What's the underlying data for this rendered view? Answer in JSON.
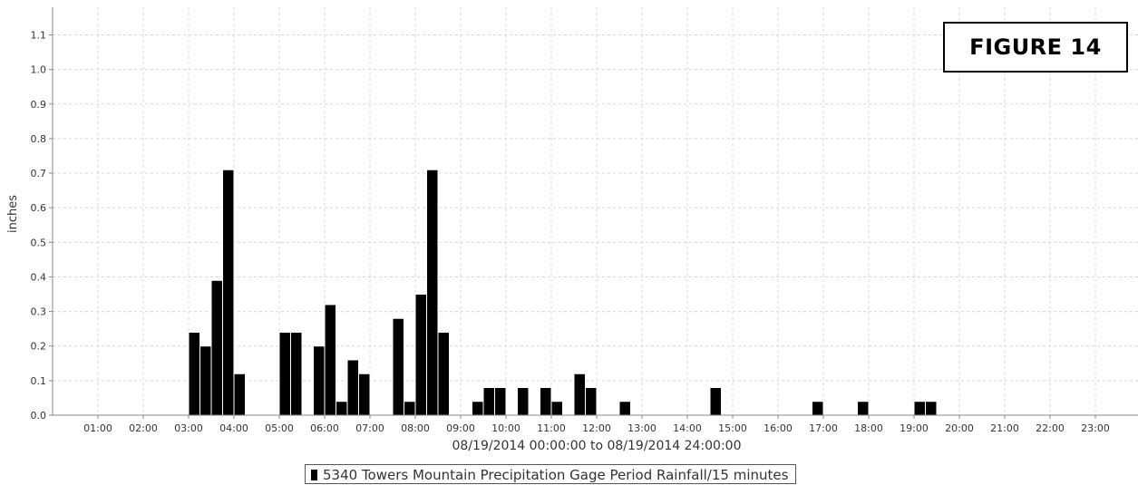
{
  "figure_label": "FIGURE 14",
  "legend_label": "5340 Towers Mountain Precipitation Gage Period Rainfall/15 minutes",
  "colors": {
    "bar": "#000000",
    "grid": "#d8d8d8",
    "axis": "#888888"
  },
  "chart_data": {
    "type": "bar",
    "ylabel": "inches",
    "xlabel": "08/19/2014 00:00:00 to 08/19/2014 24:00:00",
    "ylim": [
      0,
      1.18
    ],
    "xlim_hours": [
      0,
      24
    ],
    "yticks": [
      "0.0",
      "0.1",
      "0.2",
      "0.3",
      "0.4",
      "0.5",
      "0.6",
      "0.7",
      "0.8",
      "0.9",
      "1.0",
      "1.1"
    ],
    "xticks": [
      "01:00",
      "02:00",
      "03:00",
      "04:00",
      "05:00",
      "06:00",
      "07:00",
      "08:00",
      "09:00",
      "10:00",
      "11:00",
      "12:00",
      "13:00",
      "14:00",
      "15:00",
      "16:00",
      "17:00",
      "18:00",
      "19:00",
      "20:00",
      "21:00",
      "22:00",
      "23:00"
    ],
    "grid": true,
    "legend_position": "bottom",
    "interval": "15 minutes",
    "series": [
      {
        "name": "5340 Towers Mountain Precipitation Gage Period Rainfall/15 minutes",
        "points": [
          {
            "t": "03:00",
            "v": 0.24
          },
          {
            "t": "03:15",
            "v": 0.2
          },
          {
            "t": "03:30",
            "v": 0.39
          },
          {
            "t": "03:45",
            "v": 0.71
          },
          {
            "t": "04:00",
            "v": 0.12
          },
          {
            "t": "05:00",
            "v": 0.24
          },
          {
            "t": "05:15",
            "v": 0.24
          },
          {
            "t": "05:45",
            "v": 0.2
          },
          {
            "t": "06:00",
            "v": 0.32
          },
          {
            "t": "06:15",
            "v": 0.04
          },
          {
            "t": "06:30",
            "v": 0.16
          },
          {
            "t": "06:45",
            "v": 0.12
          },
          {
            "t": "07:30",
            "v": 0.28
          },
          {
            "t": "07:45",
            "v": 0.04
          },
          {
            "t": "08:00",
            "v": 0.35
          },
          {
            "t": "08:15",
            "v": 0.71
          },
          {
            "t": "08:30",
            "v": 0.24
          },
          {
            "t": "09:15",
            "v": 0.04
          },
          {
            "t": "09:30",
            "v": 0.08
          },
          {
            "t": "09:45",
            "v": 0.08
          },
          {
            "t": "10:15",
            "v": 0.08
          },
          {
            "t": "10:45",
            "v": 0.08
          },
          {
            "t": "11:00",
            "v": 0.04
          },
          {
            "t": "11:30",
            "v": 0.12
          },
          {
            "t": "11:45",
            "v": 0.08
          },
          {
            "t": "12:30",
            "v": 0.04
          },
          {
            "t": "14:30",
            "v": 0.08
          },
          {
            "t": "16:45",
            "v": 0.04
          },
          {
            "t": "17:45",
            "v": 0.04
          },
          {
            "t": "19:00",
            "v": 0.04
          },
          {
            "t": "19:15",
            "v": 0.04
          }
        ]
      }
    ]
  }
}
